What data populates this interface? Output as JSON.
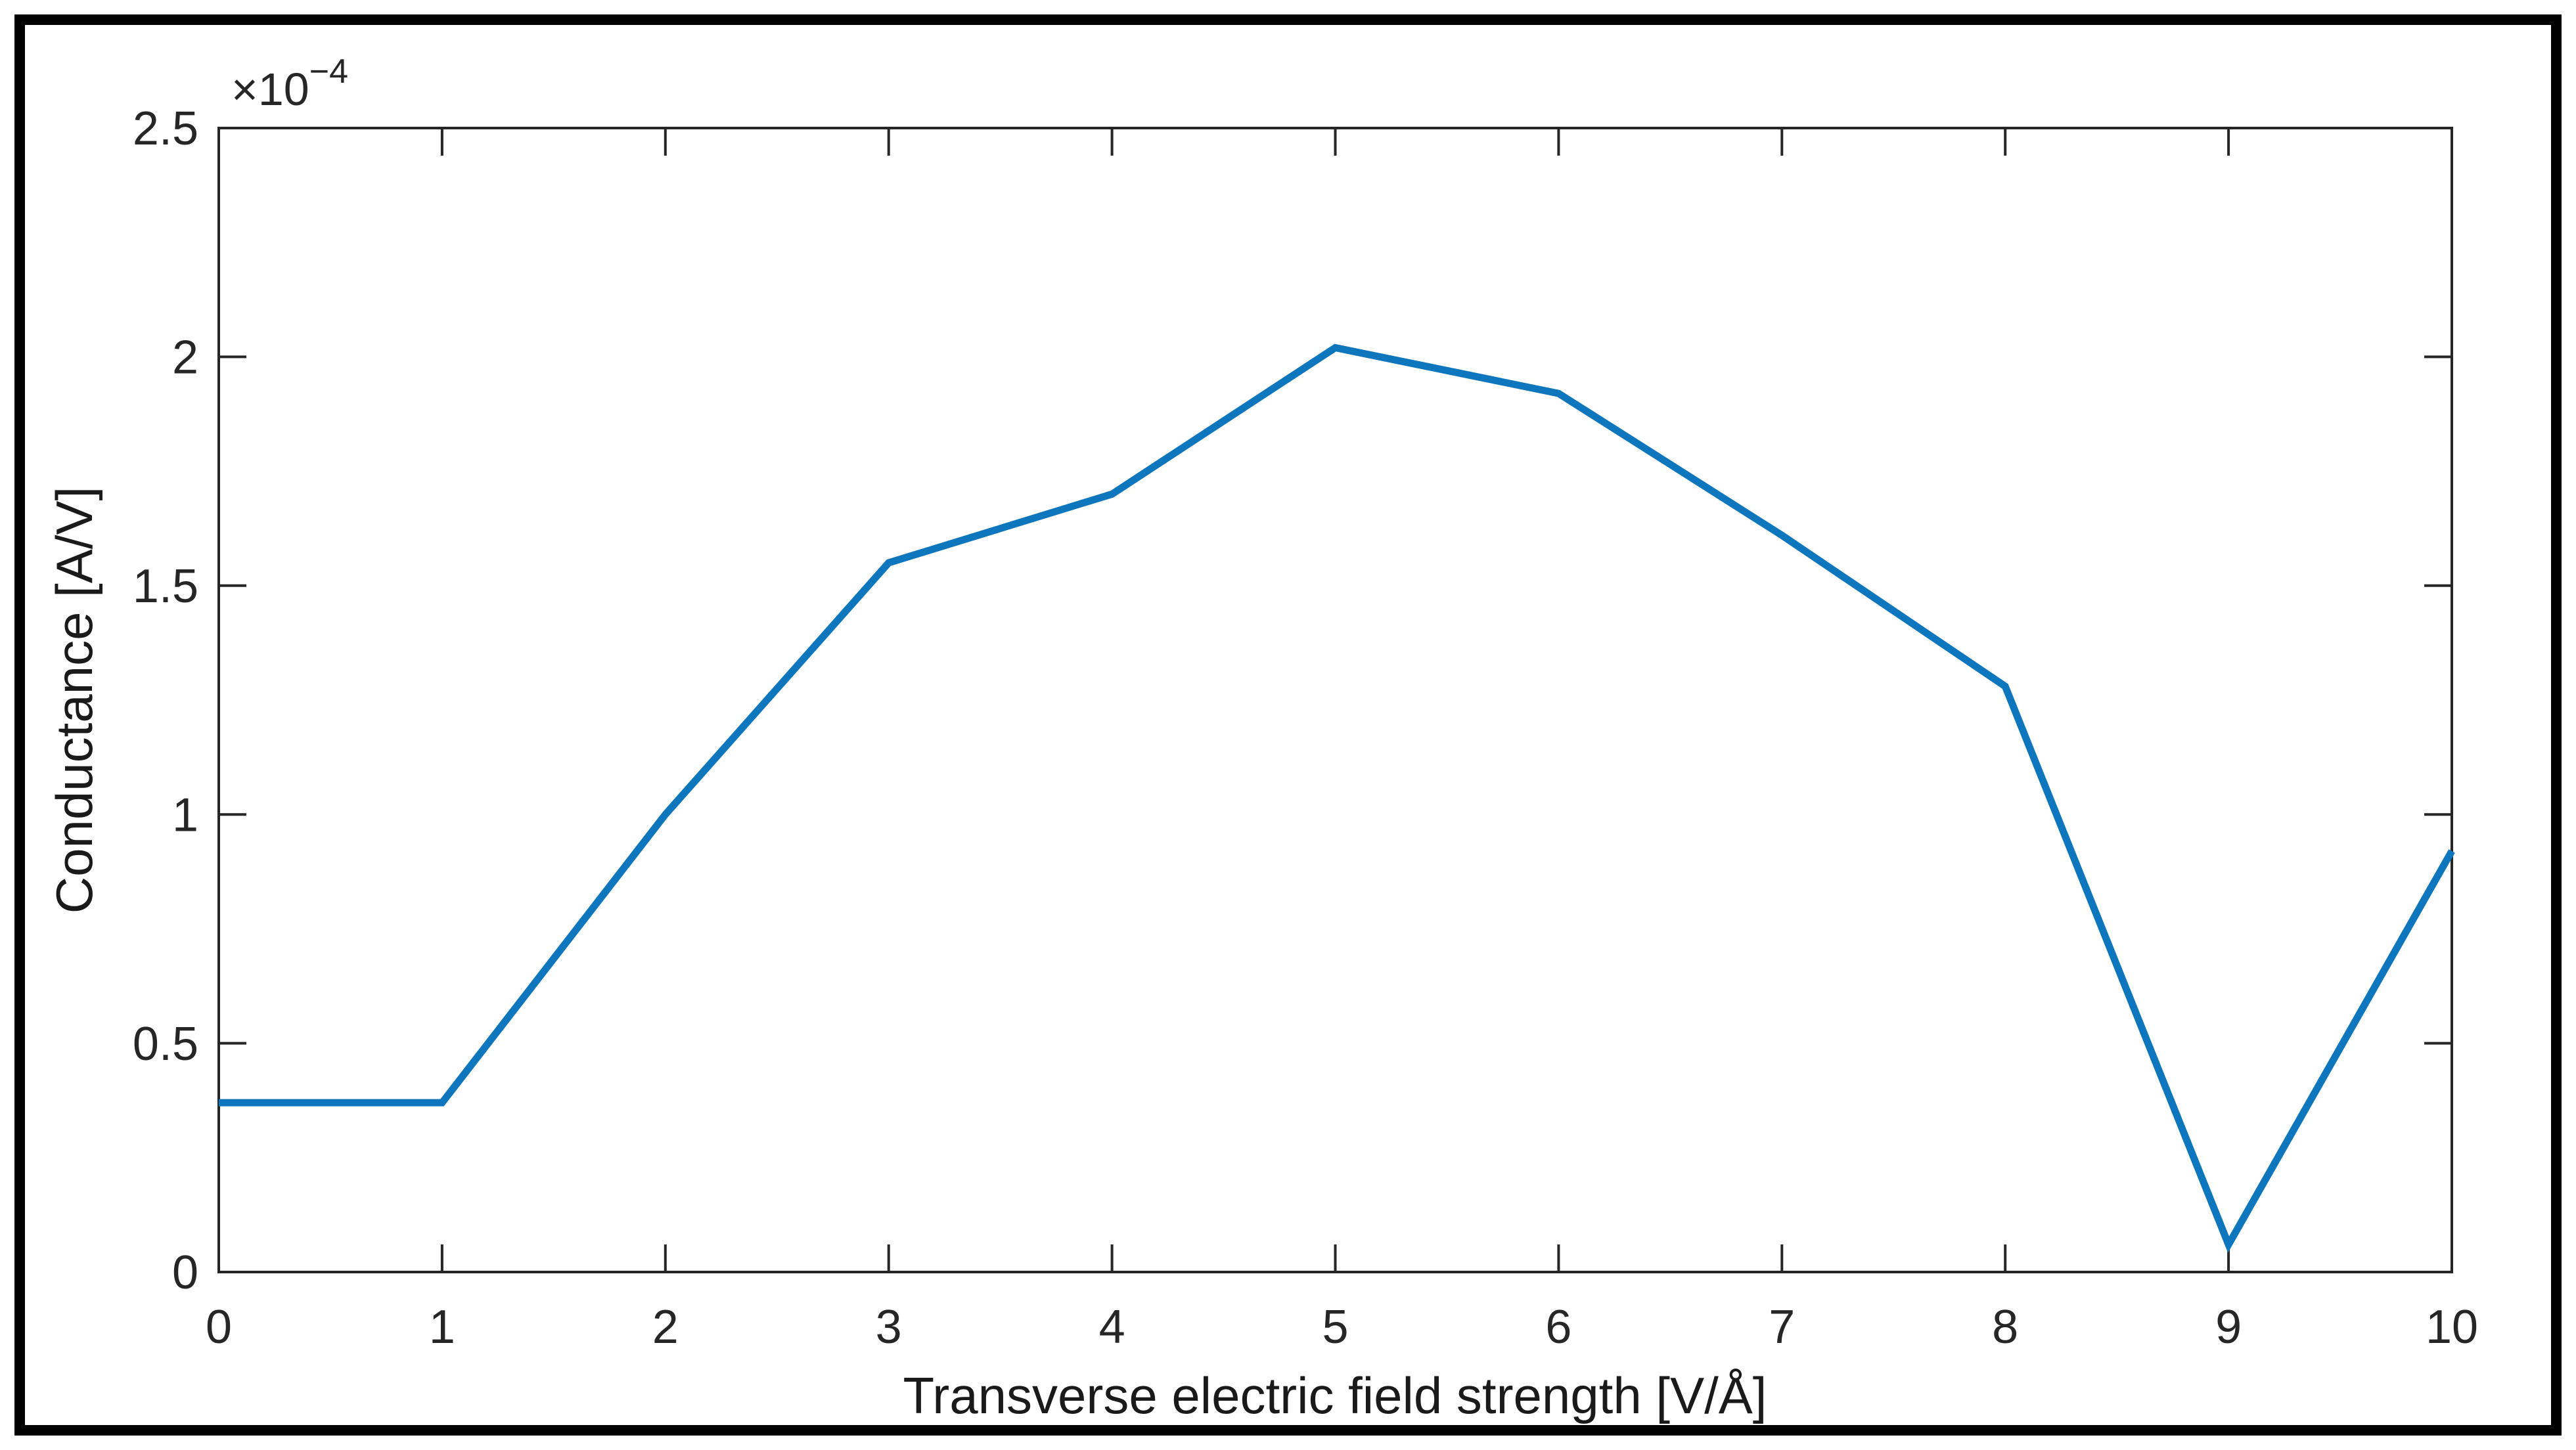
{
  "chart_data": {
    "type": "line",
    "title": "",
    "xlabel": "Transverse electric field strength [V/Å]",
    "ylabel": "Conductance [A/V]",
    "y_exponent_prefix": "×10",
    "y_exponent": "−4",
    "x": [
      0,
      1,
      2,
      3,
      4,
      5,
      6,
      7,
      8,
      9,
      10
    ],
    "series": [
      {
        "name": "conductance",
        "values_e4": [
          0.37,
          0.37,
          1.0,
          1.55,
          1.7,
          2.02,
          1.92,
          1.61,
          1.28,
          0.06,
          0.92
        ],
        "values": [
          3.7e-05,
          3.7e-05,
          0.0001,
          0.000155,
          0.00017,
          0.000202,
          0.000192,
          0.000161,
          0.000128,
          6e-06,
          9.2e-05
        ]
      }
    ],
    "xlim": [
      0,
      10
    ],
    "ylim_e4": [
      0,
      2.5
    ],
    "x_tick_labels": [
      "0",
      "1",
      "2",
      "3",
      "4",
      "5",
      "6",
      "7",
      "8",
      "9",
      "10"
    ],
    "y_tick_labels": [
      "0",
      "0.5",
      "1",
      "1.5",
      "2",
      "2.5"
    ],
    "grid": "off",
    "legend": "none",
    "line_color": "#0d76bd",
    "axis_color": "#262626",
    "border_color": "#000000",
    "background_color": "#ffffff"
  }
}
